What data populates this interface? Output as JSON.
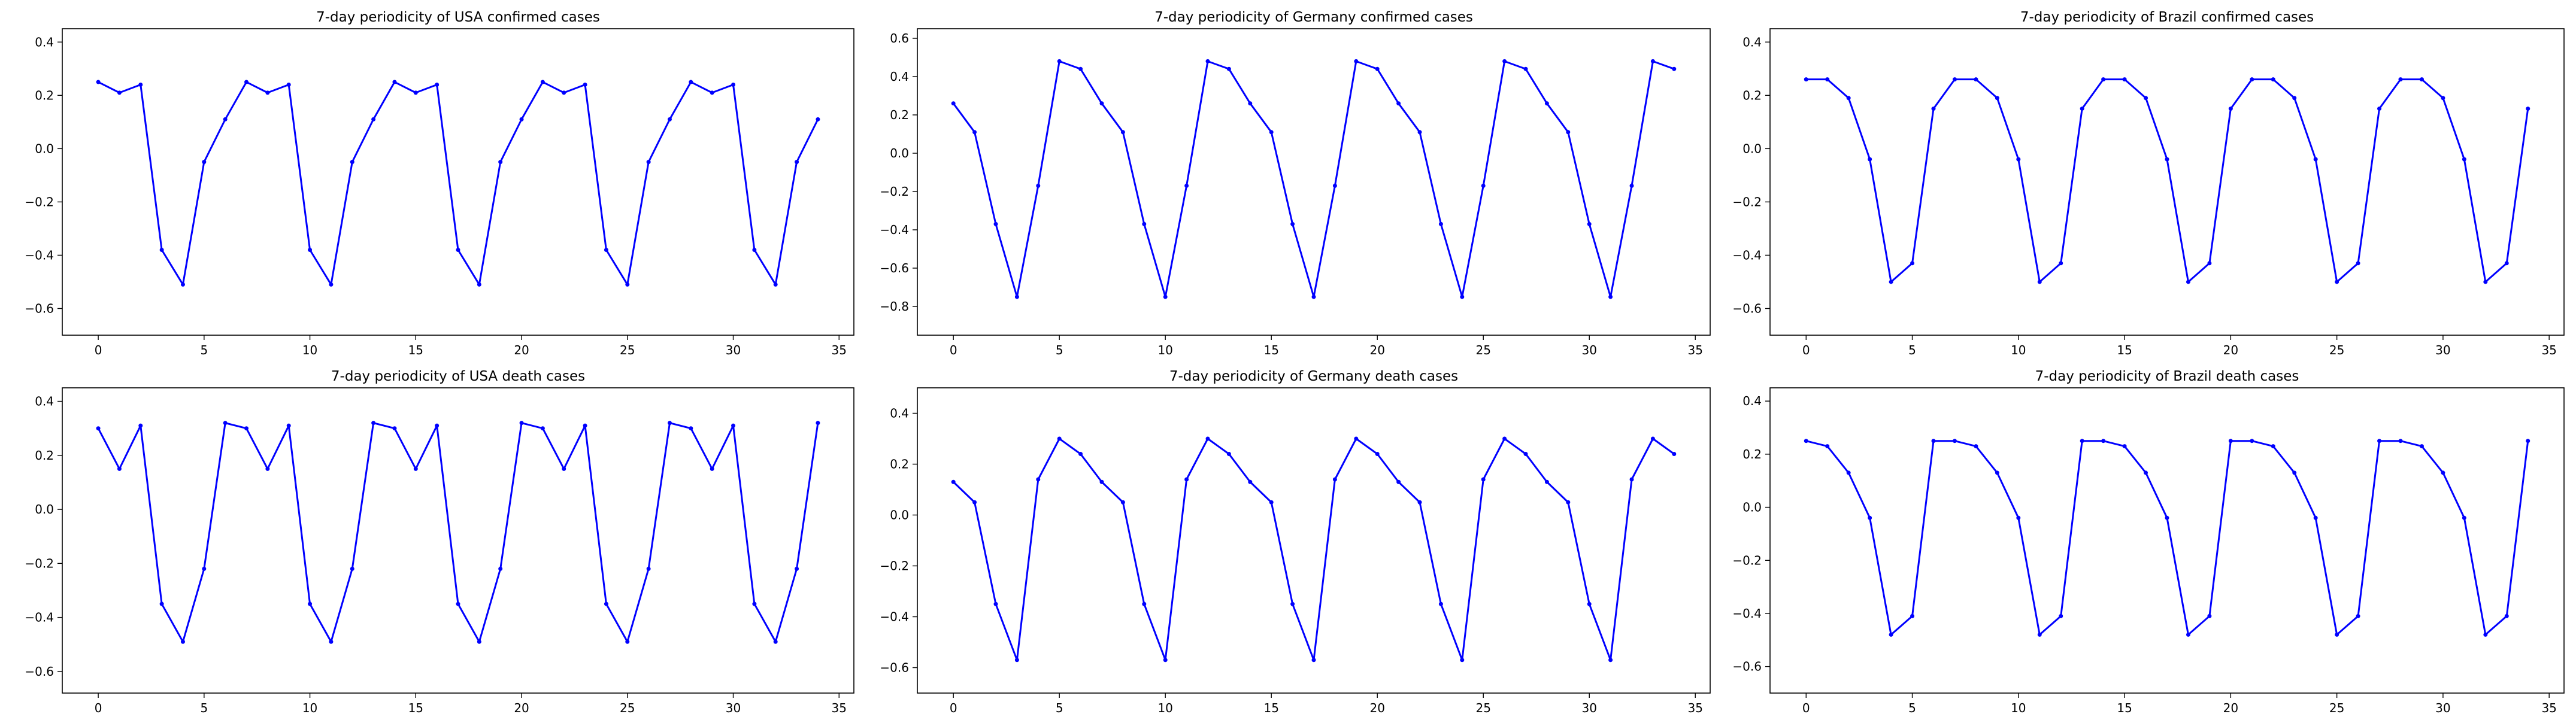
{
  "figure": {
    "description_colors": {
      "line": "#0000ff",
      "marker": "#0000ff",
      "axes": "#000000",
      "background": "#ffffff"
    }
  },
  "chart_data": [
    {
      "type": "line",
      "title": "7-day periodicity of USA confirmed cases",
      "xlabel": "",
      "ylabel": "",
      "xlim": [
        -1.7,
        35.7
      ],
      "ylim": [
        -0.7,
        0.45
      ],
      "xticks": [
        0,
        5,
        10,
        15,
        20,
        25,
        30,
        35
      ],
      "yticks": [
        -0.6,
        -0.4,
        -0.2,
        0.0,
        0.2,
        0.4
      ],
      "x": [
        0,
        1,
        2,
        3,
        4,
        5,
        6,
        7,
        8,
        9,
        10,
        11,
        12,
        13,
        14,
        15,
        16,
        17,
        18,
        19,
        20,
        21,
        22,
        23,
        24,
        25,
        26,
        27,
        28,
        29,
        30,
        31,
        32,
        33,
        34
      ],
      "series": [
        {
          "name": "USA confirmed",
          "values": [
            0.25,
            0.21,
            0.24,
            -0.38,
            -0.51,
            -0.05,
            0.11,
            0.25,
            0.21,
            0.24,
            -0.38,
            -0.51,
            -0.05,
            0.11,
            0.25,
            0.21,
            0.24,
            -0.38,
            -0.51,
            -0.05,
            0.11,
            0.25,
            0.21,
            0.24,
            -0.38,
            -0.51,
            -0.05,
            0.11,
            0.25,
            0.21,
            0.24,
            -0.38,
            -0.51,
            -0.05,
            0.11
          ]
        }
      ]
    },
    {
      "type": "line",
      "title": "7-day periodicity of Germany confirmed cases",
      "xlabel": "",
      "ylabel": "",
      "xlim": [
        -1.7,
        35.7
      ],
      "ylim": [
        -0.95,
        0.65
      ],
      "xticks": [
        0,
        5,
        10,
        15,
        20,
        25,
        30,
        35
      ],
      "yticks": [
        -0.8,
        -0.6,
        -0.4,
        -0.2,
        0.0,
        0.2,
        0.4,
        0.6
      ],
      "x": [
        0,
        1,
        2,
        3,
        4,
        5,
        6,
        7,
        8,
        9,
        10,
        11,
        12,
        13,
        14,
        15,
        16,
        17,
        18,
        19,
        20,
        21,
        22,
        23,
        24,
        25,
        26,
        27,
        28,
        29,
        30,
        31,
        32,
        33,
        34
      ],
      "series": [
        {
          "name": "Germany confirmed",
          "values": [
            0.26,
            0.11,
            -0.37,
            -0.75,
            -0.17,
            0.48,
            0.44,
            0.26,
            0.11,
            -0.37,
            -0.75,
            -0.17,
            0.48,
            0.44,
            0.26,
            0.11,
            -0.37,
            -0.75,
            -0.17,
            0.48,
            0.44,
            0.26,
            0.11,
            -0.37,
            -0.75,
            -0.17,
            0.48,
            0.44,
            0.26,
            0.11,
            -0.37,
            -0.75,
            -0.17,
            0.48,
            0.44
          ]
        }
      ]
    },
    {
      "type": "line",
      "title": "7-day periodicity of Brazil confirmed cases",
      "xlabel": "",
      "ylabel": "",
      "xlim": [
        -1.7,
        35.7
      ],
      "ylim": [
        -0.7,
        0.45
      ],
      "xticks": [
        0,
        5,
        10,
        15,
        20,
        25,
        30,
        35
      ],
      "yticks": [
        -0.6,
        -0.4,
        -0.2,
        0.0,
        0.2,
        0.4
      ],
      "x": [
        0,
        1,
        2,
        3,
        4,
        5,
        6,
        7,
        8,
        9,
        10,
        11,
        12,
        13,
        14,
        15,
        16,
        17,
        18,
        19,
        20,
        21,
        22,
        23,
        24,
        25,
        26,
        27,
        28,
        29,
        30,
        31,
        32,
        33,
        34
      ],
      "series": [
        {
          "name": "Brazil confirmed",
          "values": [
            0.26,
            0.26,
            0.19,
            -0.04,
            -0.5,
            -0.43,
            0.15,
            0.26,
            0.26,
            0.19,
            -0.04,
            -0.5,
            -0.43,
            0.15,
            0.26,
            0.26,
            0.19,
            -0.04,
            -0.5,
            -0.43,
            0.15,
            0.26,
            0.26,
            0.19,
            -0.04,
            -0.5,
            -0.43,
            0.15,
            0.26,
            0.26,
            0.19,
            -0.04,
            -0.5,
            -0.43,
            0.15
          ]
        }
      ]
    },
    {
      "type": "line",
      "title": "7-day periodicity of USA death cases",
      "xlabel": "",
      "ylabel": "",
      "xlim": [
        -1.7,
        35.7
      ],
      "ylim": [
        -0.68,
        0.45
      ],
      "xticks": [
        0,
        5,
        10,
        15,
        20,
        25,
        30,
        35
      ],
      "yticks": [
        -0.6,
        -0.4,
        -0.2,
        0.0,
        0.2,
        0.4
      ],
      "x": [
        0,
        1,
        2,
        3,
        4,
        5,
        6,
        7,
        8,
        9,
        10,
        11,
        12,
        13,
        14,
        15,
        16,
        17,
        18,
        19,
        20,
        21,
        22,
        23,
        24,
        25,
        26,
        27,
        28,
        29,
        30,
        31,
        32,
        33,
        34
      ],
      "series": [
        {
          "name": "USA death",
          "values": [
            0.3,
            0.15,
            0.31,
            -0.35,
            -0.49,
            -0.22,
            0.32,
            0.3,
            0.15,
            0.31,
            -0.35,
            -0.49,
            -0.22,
            0.32,
            0.3,
            0.15,
            0.31,
            -0.35,
            -0.49,
            -0.22,
            0.32,
            0.3,
            0.15,
            0.31,
            -0.35,
            -0.49,
            -0.22,
            0.32,
            0.3,
            0.15,
            0.31,
            -0.35,
            -0.49,
            -0.22,
            0.32
          ]
        }
      ]
    },
    {
      "type": "line",
      "title": "7-day periodicity of Germany death cases",
      "xlabel": "",
      "ylabel": "",
      "xlim": [
        -1.7,
        35.7
      ],
      "ylim": [
        -0.7,
        0.5
      ],
      "xticks": [
        0,
        5,
        10,
        15,
        20,
        25,
        30,
        35
      ],
      "yticks": [
        -0.6,
        -0.4,
        -0.2,
        0.0,
        0.2,
        0.4
      ],
      "x": [
        0,
        1,
        2,
        3,
        4,
        5,
        6,
        7,
        8,
        9,
        10,
        11,
        12,
        13,
        14,
        15,
        16,
        17,
        18,
        19,
        20,
        21,
        22,
        23,
        24,
        25,
        26,
        27,
        28,
        29,
        30,
        31,
        32,
        33,
        34
      ],
      "series": [
        {
          "name": "Germany death",
          "values": [
            0.13,
            0.05,
            -0.35,
            -0.57,
            0.14,
            0.3,
            0.24,
            0.13,
            0.05,
            -0.35,
            -0.57,
            0.14,
            0.3,
            0.24,
            0.13,
            0.05,
            -0.35,
            -0.57,
            0.14,
            0.3,
            0.24,
            0.13,
            0.05,
            -0.35,
            -0.57,
            0.14,
            0.3,
            0.24,
            0.13,
            0.05,
            -0.35,
            -0.57,
            0.14,
            0.3,
            0.24
          ]
        }
      ]
    },
    {
      "type": "line",
      "title": "7-day periodicity of Brazil death cases",
      "xlabel": "",
      "ylabel": "",
      "xlim": [
        -1.7,
        35.7
      ],
      "ylim": [
        -0.7,
        0.45
      ],
      "xticks": [
        0,
        5,
        10,
        15,
        20,
        25,
        30,
        35
      ],
      "yticks": [
        -0.6,
        -0.4,
        -0.2,
        0.0,
        0.2,
        0.4
      ],
      "x": [
        0,
        1,
        2,
        3,
        4,
        5,
        6,
        7,
        8,
        9,
        10,
        11,
        12,
        13,
        14,
        15,
        16,
        17,
        18,
        19,
        20,
        21,
        22,
        23,
        24,
        25,
        26,
        27,
        28,
        29,
        30,
        31,
        32,
        33,
        34
      ],
      "series": [
        {
          "name": "Brazil death",
          "values": [
            0.25,
            0.23,
            0.13,
            -0.04,
            -0.48,
            -0.41,
            0.25,
            0.25,
            0.23,
            0.13,
            -0.04,
            -0.48,
            -0.41,
            0.25,
            0.25,
            0.23,
            0.13,
            -0.04,
            -0.48,
            -0.41,
            0.25,
            0.25,
            0.23,
            0.13,
            -0.04,
            -0.48,
            -0.41,
            0.25,
            0.25,
            0.23,
            0.13,
            -0.04,
            -0.48,
            -0.41,
            0.25
          ]
        }
      ]
    }
  ]
}
